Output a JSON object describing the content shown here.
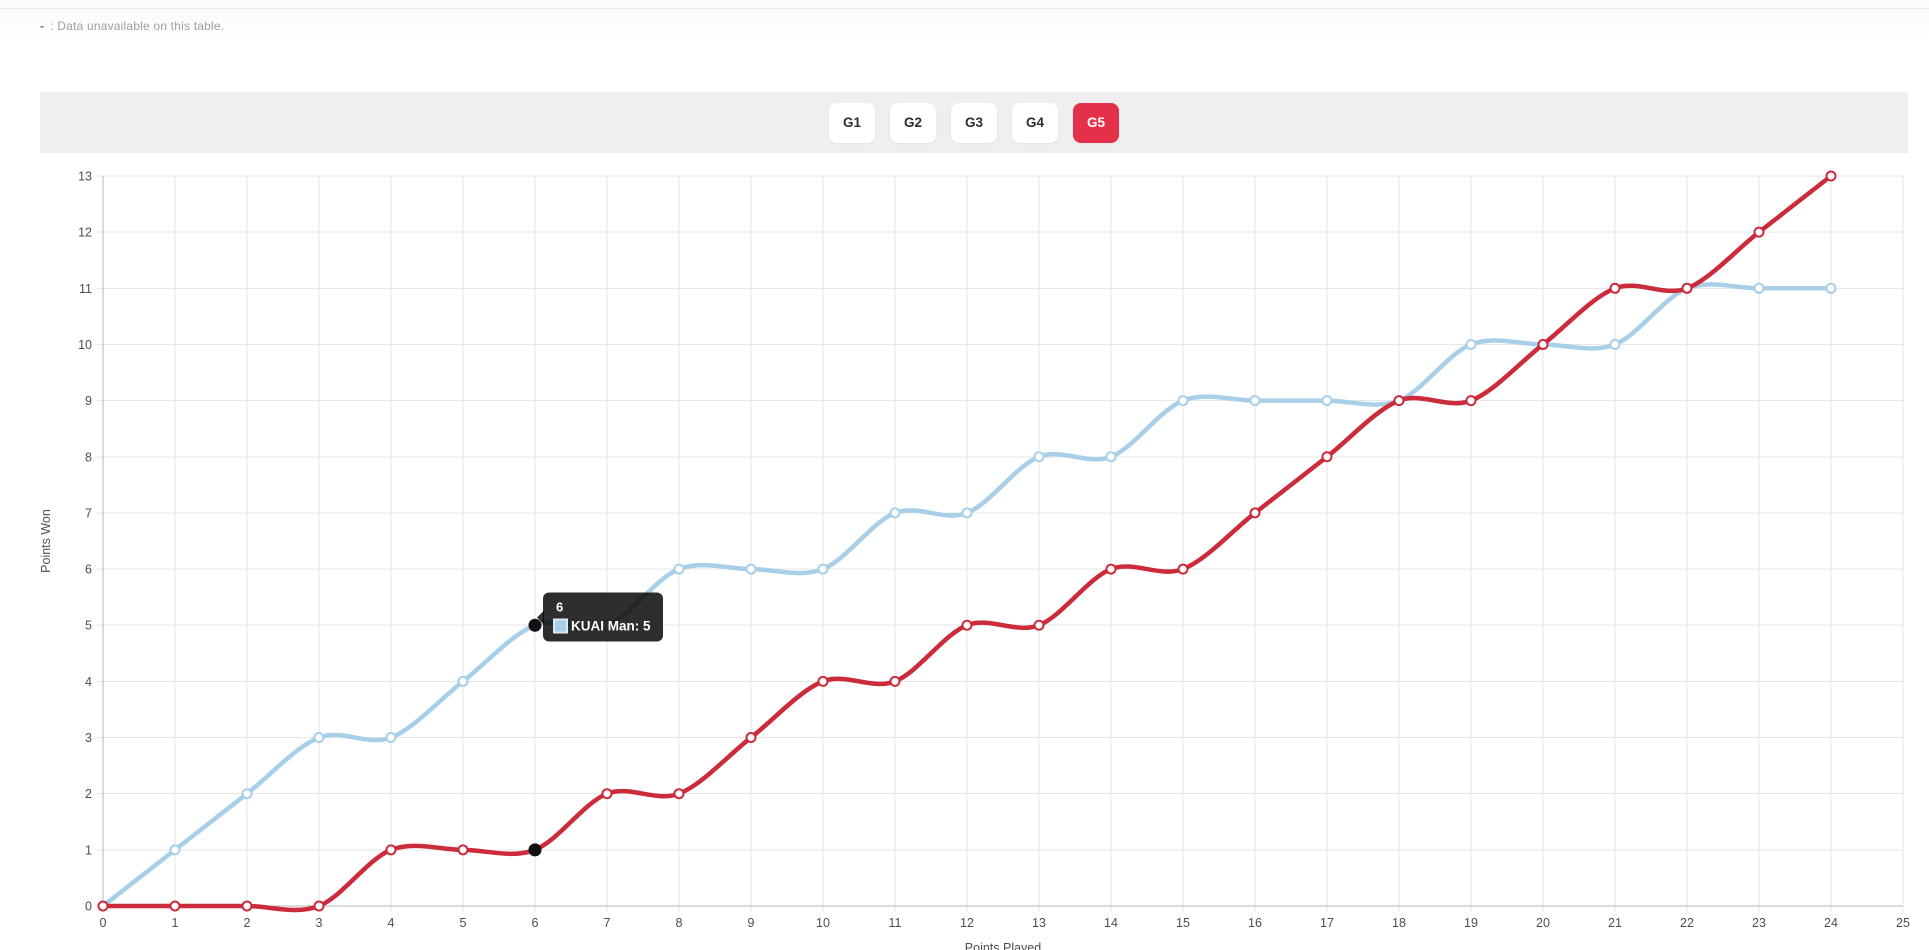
{
  "note": {
    "dash": "-",
    "text": ": Data unavailable on this table."
  },
  "toolbar": {
    "buttons": [
      {
        "label": "G1",
        "active": false
      },
      {
        "label": "G2",
        "active": false
      },
      {
        "label": "G3",
        "active": false
      },
      {
        "label": "G4",
        "active": false
      },
      {
        "label": "G5",
        "active": true
      }
    ],
    "active_color": "#e5304a"
  },
  "tooltip": {
    "title": "6",
    "label": "KUAI Man: 5",
    "swatch_color": "#a8cfe8"
  },
  "chart_data": {
    "type": "line",
    "xlabel": "Points Played",
    "ylabel": "Points Won",
    "xlim": [
      0,
      25
    ],
    "ylim": [
      0,
      13
    ],
    "x_ticks": [
      0,
      1,
      2,
      3,
      4,
      5,
      6,
      7,
      8,
      9,
      10,
      11,
      12,
      13,
      14,
      15,
      16,
      17,
      18,
      19,
      20,
      21,
      22,
      23,
      24,
      25
    ],
    "y_ticks": [
      0,
      1,
      2,
      3,
      4,
      5,
      6,
      7,
      8,
      9,
      10,
      11,
      12,
      13
    ],
    "grid": true,
    "legend": "none",
    "x": [
      0,
      1,
      2,
      3,
      4,
      5,
      6,
      7,
      8,
      9,
      10,
      11,
      12,
      13,
      14,
      15,
      16,
      17,
      18,
      19,
      20,
      21,
      22,
      23,
      24
    ],
    "series": [
      {
        "id": "kuai-man",
        "name": "KUAI Man",
        "color": "#a8cfe8",
        "values": [
          0,
          1,
          2,
          3,
          3,
          4,
          5,
          5,
          6,
          6,
          6,
          7,
          7,
          8,
          8,
          9,
          9,
          9,
          9,
          10,
          10,
          10,
          11,
          11,
          11
        ]
      },
      {
        "id": "opponent-red",
        "name": "",
        "color": "#cb2b3a",
        "values": [
          0,
          0,
          0,
          0,
          1,
          1,
          1,
          2,
          2,
          3,
          4,
          4,
          5,
          5,
          6,
          6,
          7,
          8,
          9,
          9,
          10,
          11,
          11,
          12,
          13
        ]
      }
    ],
    "hover": {
      "x": 6,
      "points": [
        {
          "series": "KUAI Man",
          "value": 5
        },
        {
          "series": "",
          "value": 1
        }
      ]
    },
    "colors": {
      "grid": "#e6e6e6",
      "axis": "#b6b6b6",
      "tick_text": "#4d4d4d",
      "hover_dot": "#111111",
      "tooltip_bg": "rgba(0,0,0,0.82)"
    }
  }
}
